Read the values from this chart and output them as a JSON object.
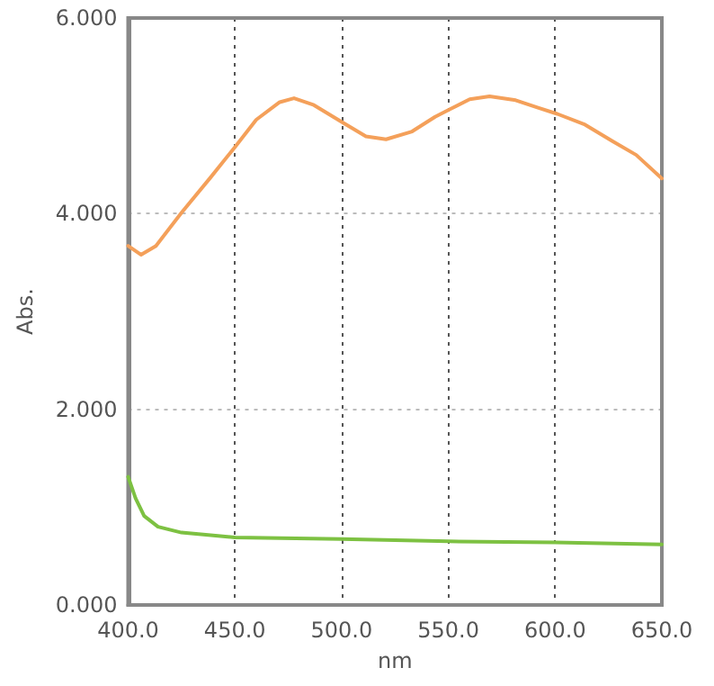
{
  "chart_data": {
    "type": "line",
    "xlabel": "nm",
    "ylabel": "Abs.",
    "xlim": [
      400,
      650
    ],
    "ylim": [
      0,
      6
    ],
    "xticks": [
      {
        "value": 400,
        "label": "400.0"
      },
      {
        "value": 450,
        "label": "450.0"
      },
      {
        "value": 500,
        "label": "500.0"
      },
      {
        "value": 550,
        "label": "550.0"
      },
      {
        "value": 600,
        "label": "600.0"
      },
      {
        "value": 650,
        "label": "650.0"
      }
    ],
    "yticks": [
      {
        "value": 0,
        "label": "0.000"
      },
      {
        "value": 2,
        "label": "2.000"
      },
      {
        "value": 4,
        "label": "4.000"
      },
      {
        "value": 6,
        "label": "6.000"
      }
    ],
    "grid": true,
    "marker": "none",
    "line_style": "solid",
    "series": [
      {
        "color": "#f4a05a",
        "x": [
          400,
          406,
          413,
          425,
          438.6,
          450,
          460,
          471,
          477.7,
          487,
          500.6,
          511.4,
          520.8,
          533,
          543.8,
          551,
          560,
          569.3,
          581.5,
          592.3,
          601,
          614,
          627,
          638,
          650
        ],
        "values": [
          3.67,
          3.58,
          3.67,
          4.01,
          4.37,
          4.68,
          4.96,
          5.14,
          5.18,
          5.11,
          4.93,
          4.79,
          4.76,
          4.84,
          4.99,
          5.07,
          5.17,
          5.2,
          5.16,
          5.08,
          5.02,
          4.91,
          4.74,
          4.6,
          4.36
        ]
      },
      {
        "color": "#7dc142",
        "x": [
          400,
          403.5,
          407.5,
          414,
          425,
          450,
          500,
          550,
          600,
          650
        ],
        "values": [
          1.31,
          1.09,
          0.91,
          0.8,
          0.74,
          0.69,
          0.675,
          0.65,
          0.64,
          0.62
        ]
      }
    ]
  }
}
